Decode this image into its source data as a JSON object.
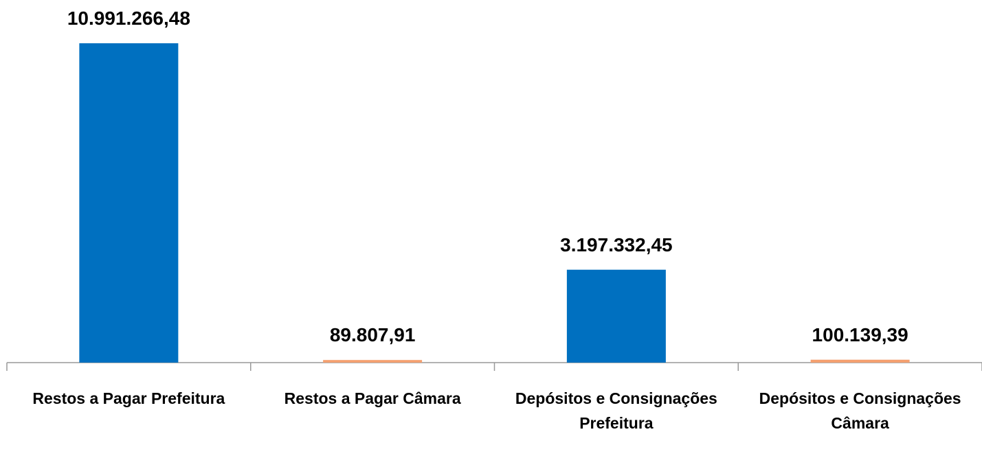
{
  "chart_data": {
    "type": "bar",
    "categories": [
      "Restos a Pagar Prefeitura",
      "Restos a Pagar Câmara",
      "Depósitos e Consignações Prefeitura",
      "Depósitos e Consignações Câmara"
    ],
    "values": [
      10991266.48,
      89807.91,
      3197332.45,
      100139.39
    ],
    "value_labels": [
      "10.991.266,48",
      "89.807,91",
      "3.197.332,45",
      "100.139,39"
    ],
    "colors": [
      "#0070c0",
      "#f4a070",
      "#0070c0",
      "#f4a070"
    ]
  }
}
